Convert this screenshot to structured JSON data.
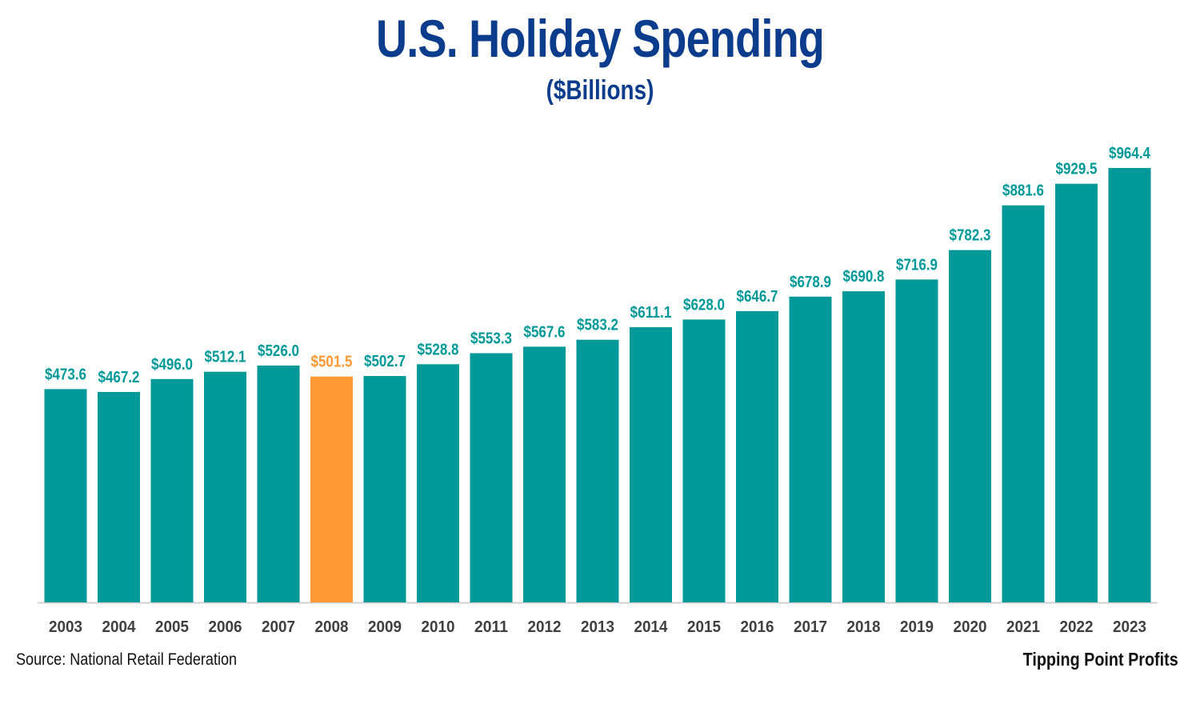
{
  "chart_data": {
    "type": "bar",
    "title": "U.S. Holiday Spending",
    "subtitle": "($Billions)",
    "categories": [
      "2003",
      "2004",
      "2005",
      "2006",
      "2007",
      "2008",
      "2009",
      "2010",
      "2011",
      "2012",
      "2013",
      "2014",
      "2015",
      "2016",
      "2017",
      "2018",
      "2019",
      "2020",
      "2021",
      "2022",
      "2023"
    ],
    "values": [
      473.6,
      467.2,
      496.0,
      512.1,
      526.0,
      501.5,
      502.7,
      528.8,
      553.3,
      567.6,
      583.2,
      611.1,
      628.0,
      646.7,
      678.9,
      690.8,
      716.9,
      782.3,
      881.6,
      929.5,
      964.4
    ],
    "data_labels": [
      "$473.6",
      "$467.2",
      "$496.0",
      "$512.1",
      "$526.0",
      "$501.5",
      "$502.7",
      "$528.8",
      "$553.3",
      "$567.6",
      "$583.2",
      "$611.1",
      "$628.0",
      "$646.7",
      "$678.9",
      "$690.8",
      "$716.9",
      "$782.3",
      "$881.6",
      "$929.5",
      "$964.4"
    ],
    "highlight_category": "2008",
    "ylim": [
      0,
      1000
    ],
    "grid": false,
    "legend": "none",
    "colors": {
      "bar": "#009999",
      "highlight": "#ff9933",
      "title": "#0c3c8c",
      "axis": "#d0d0d0",
      "tick_text": "#404040"
    }
  },
  "footer": {
    "source": "Source: National Retail Federation",
    "brand": "Tipping Point Profits"
  }
}
